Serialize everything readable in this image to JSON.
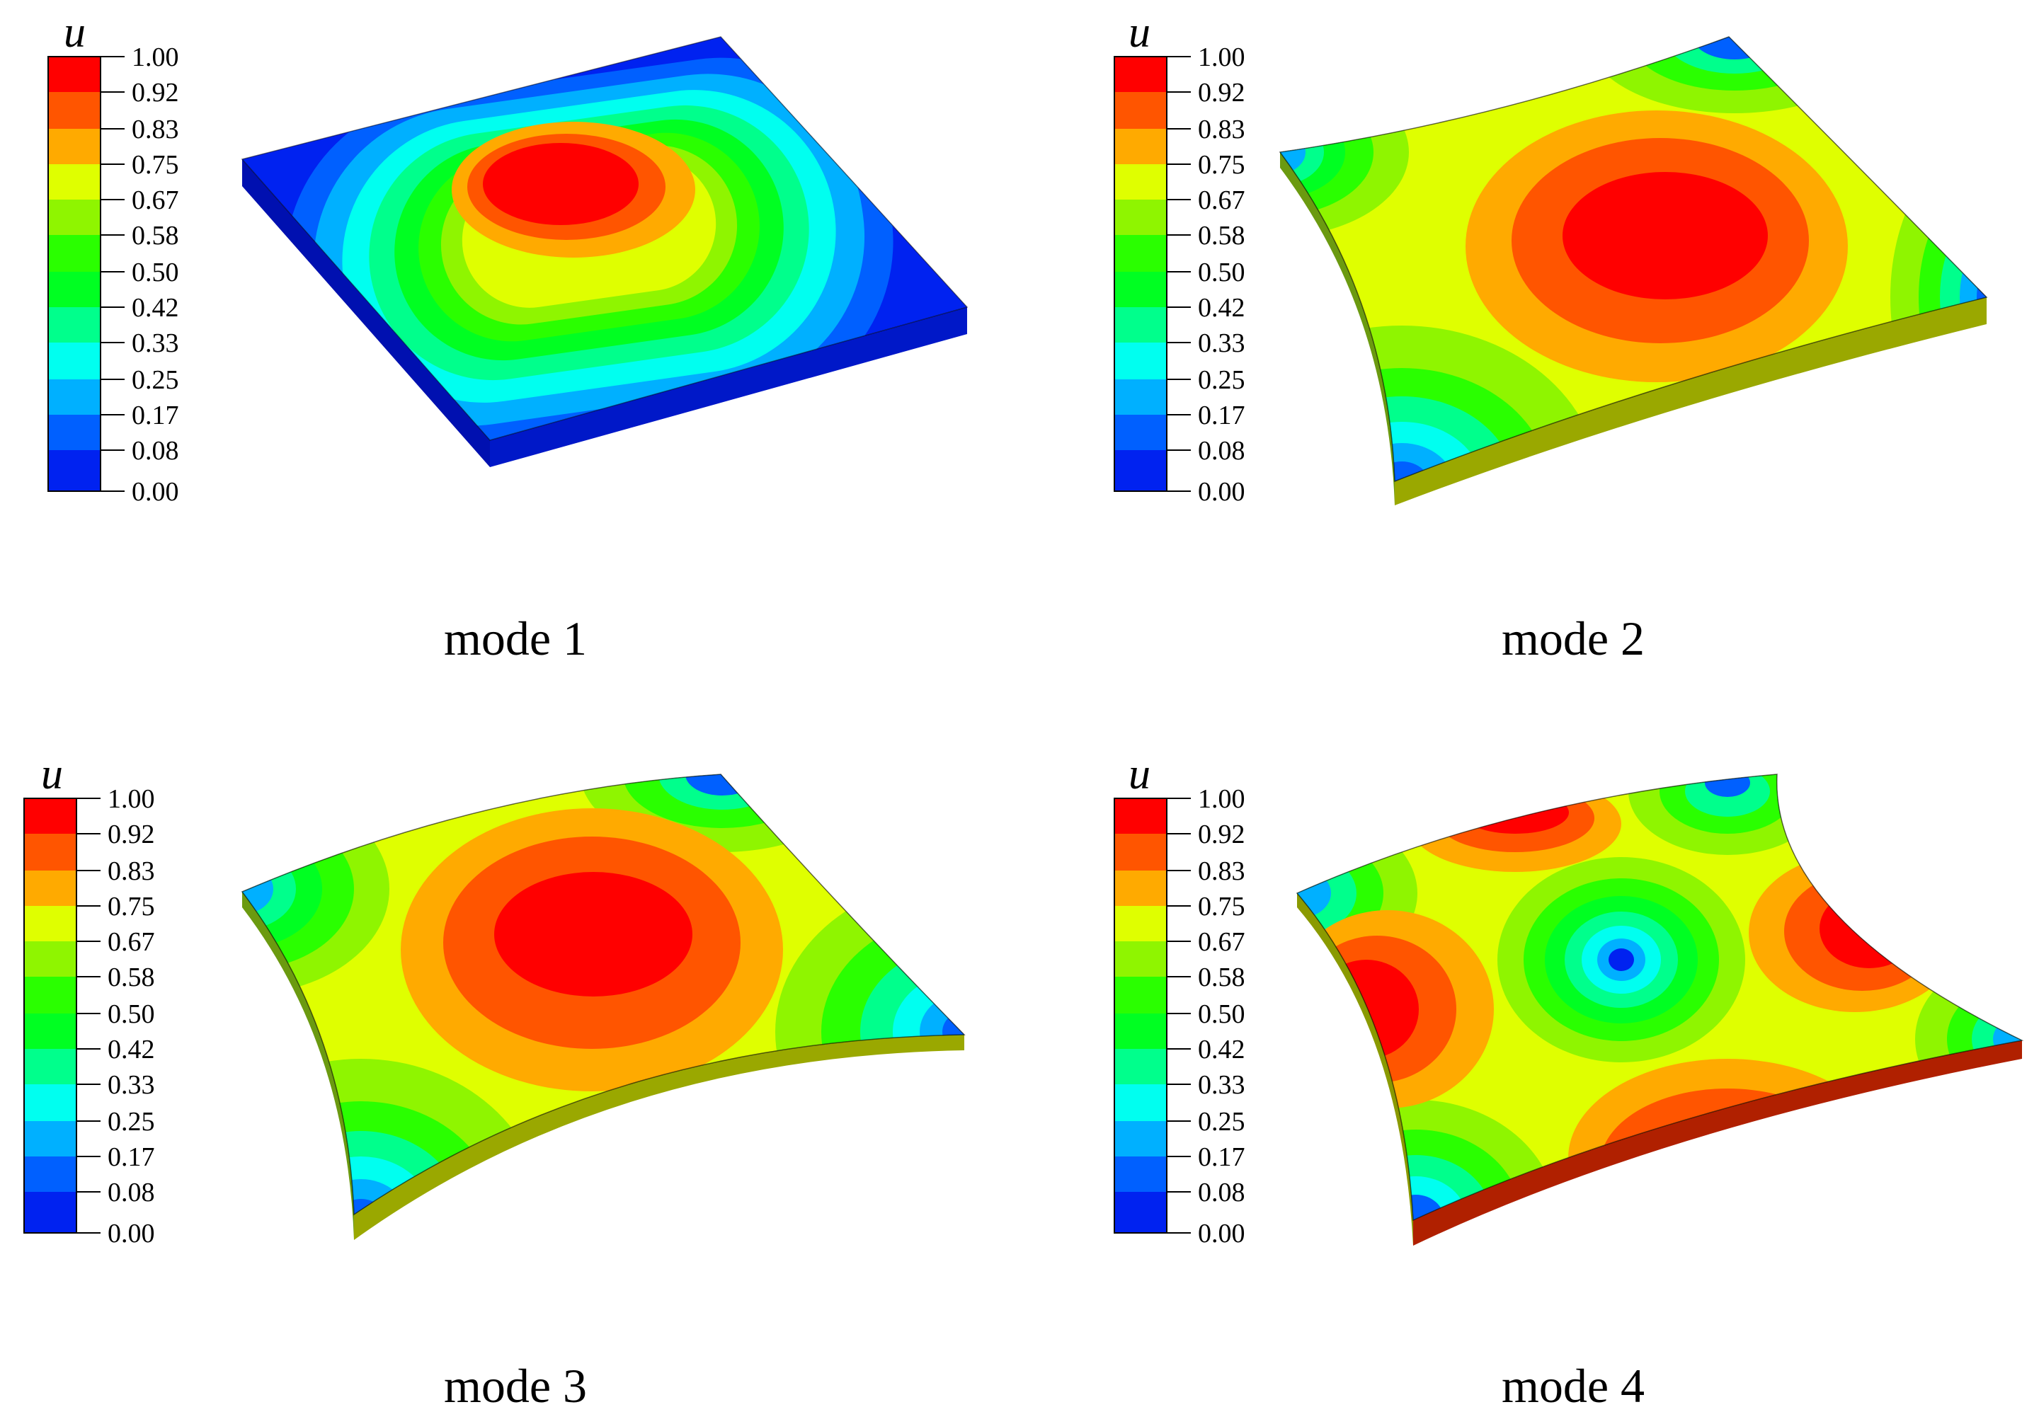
{
  "colorbar": {
    "symbol": "u",
    "ticks": [
      "1.00",
      "0.92",
      "0.83",
      "0.75",
      "0.67",
      "0.58",
      "0.50",
      "0.42",
      "0.33",
      "0.25",
      "0.17",
      "0.08",
      "0.00"
    ],
    "colors": [
      "#ff0000",
      "#ff5500",
      "#ffaa00",
      "#dfff00",
      "#8ff500",
      "#2aff00",
      "#00ff22",
      "#00ff8c",
      "#00fff0",
      "#00b0ff",
      "#0060ff",
      "#0022f0"
    ]
  },
  "modes": [
    {
      "caption": "mode 1",
      "field": "mode-1-plate-displacement",
      "peak_regions": 1
    },
    {
      "caption": "mode 2",
      "field": "mode-2-plate-displacement",
      "peak_regions": 1
    },
    {
      "caption": "mode 3",
      "field": "mode-3-plate-displacement",
      "peak_regions": 1
    },
    {
      "caption": "mode 4",
      "field": "mode-4-plate-displacement",
      "peak_regions": 4
    }
  ]
}
